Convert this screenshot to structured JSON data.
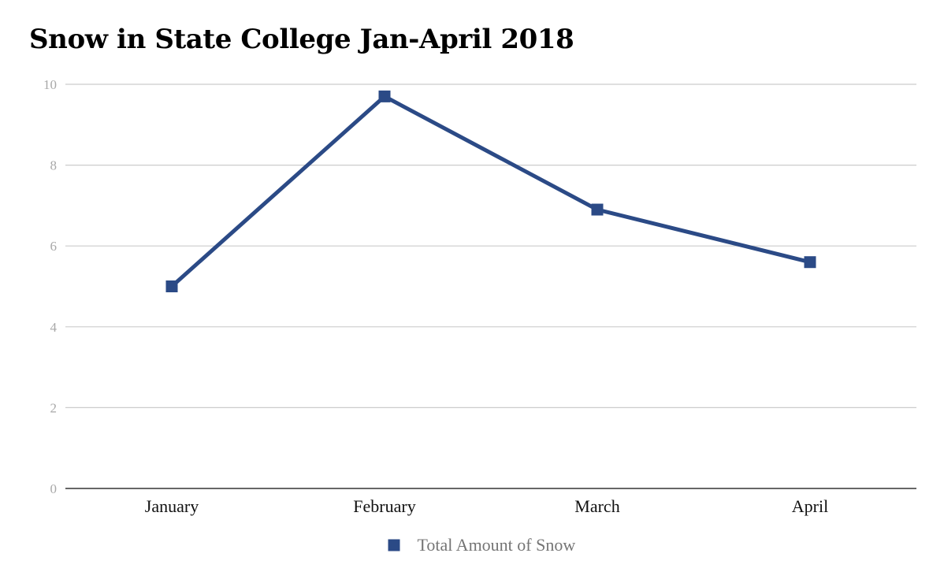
{
  "chart_data": {
    "type": "line",
    "title": "Snow in State College Jan-April 2018",
    "xlabel": "",
    "ylabel": "",
    "categories": [
      "January",
      "February",
      "March",
      "April"
    ],
    "series": [
      {
        "name": "Total Amount of Snow",
        "values": [
          5.0,
          9.7,
          6.9,
          5.6
        ],
        "color": "#2b4a86"
      }
    ],
    "ylim": [
      0,
      10
    ],
    "yticks": [
      0,
      2,
      4,
      6,
      8,
      10
    ],
    "grid": true,
    "legend_position": "bottom",
    "gridline_color": "#cccccc",
    "axis_color": "#333333"
  }
}
